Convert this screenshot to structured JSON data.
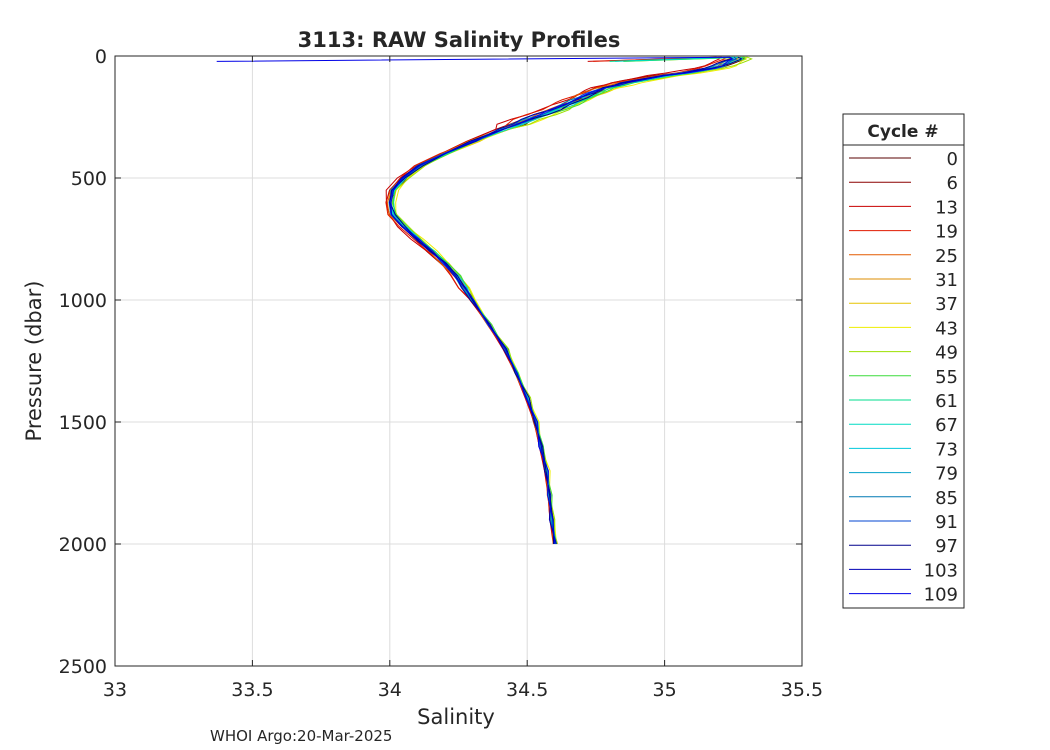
{
  "chart_data": {
    "type": "line",
    "title": "3113: RAW Salinity Profiles",
    "xlabel": "Salinity",
    "ylabel": "Pressure (dbar)",
    "xlim": [
      33,
      35.5
    ],
    "ylim": [
      0,
      2500
    ],
    "y_reversed": true,
    "x_ticks": [
      "33",
      "33.5",
      "34",
      "34.5",
      "35",
      "35.5"
    ],
    "y_ticks": [
      "0",
      "500",
      "1000",
      "1500",
      "2000",
      "2500"
    ],
    "grid": true,
    "legend_title": "Cycle #",
    "legend_position": "outside-right",
    "footer": "WHOI Argo:20-Mar-2025",
    "mean_profile": {
      "pressure": [
        5,
        12,
        20,
        30,
        40,
        50,
        60,
        70,
        80,
        90,
        100,
        110,
        120,
        130,
        140,
        150,
        160,
        170,
        180,
        190,
        200,
        220,
        240,
        260,
        280,
        300,
        350,
        400,
        450,
        500,
        550,
        600,
        650,
        700,
        750,
        800,
        850,
        900,
        950,
        1000,
        1100,
        1200,
        1300,
        1400,
        1500,
        1600,
        1700,
        1800,
        1900,
        2000
      ],
      "salinity": [
        35.25,
        35.26,
        35.24,
        35.22,
        35.2,
        35.17,
        35.12,
        35.07,
        35.0,
        34.95,
        34.9,
        34.85,
        34.82,
        34.78,
        34.76,
        34.74,
        34.72,
        34.7,
        34.68,
        34.66,
        34.64,
        34.6,
        34.55,
        34.5,
        34.46,
        34.41,
        34.3,
        34.2,
        34.11,
        34.05,
        34.01,
        34.0,
        34.01,
        34.05,
        34.1,
        34.15,
        34.2,
        34.24,
        34.27,
        34.3,
        34.36,
        34.42,
        34.46,
        34.5,
        34.53,
        34.55,
        34.57,
        34.58,
        34.59,
        34.6
      ]
    },
    "series": [
      {
        "name": "0",
        "color": "#5a0000",
        "offset": 0.02,
        "surface_spike": null
      },
      {
        "name": "6",
        "color": "#8c0000",
        "offset": -0.03,
        "surface_spike": null
      },
      {
        "name": "13",
        "color": "#c80000",
        "offset": -0.05,
        "surface_spike": 34.72
      },
      {
        "name": "19",
        "color": "#e01a00",
        "offset": -0.04,
        "surface_spike": 34.74
      },
      {
        "name": "25",
        "color": "#e35a00",
        "offset": -0.02,
        "surface_spike": null
      },
      {
        "name": "31",
        "color": "#dc8c00",
        "offset": 0.0,
        "surface_spike": null
      },
      {
        "name": "37",
        "color": "#e6c300",
        "offset": 0.03,
        "surface_spike": null
      },
      {
        "name": "43",
        "color": "#eeee00",
        "offset": 0.05,
        "surface_spike": null
      },
      {
        "name": "49",
        "color": "#9be000",
        "offset": 0.04,
        "surface_spike": 34.85
      },
      {
        "name": "55",
        "color": "#3cdc3c",
        "offset": 0.03,
        "surface_spike": 34.85
      },
      {
        "name": "61",
        "color": "#00dc8c",
        "offset": 0.02,
        "surface_spike": 34.8
      },
      {
        "name": "67",
        "color": "#00dcc3",
        "offset": 0.01,
        "surface_spike": 34.82
      },
      {
        "name": "73",
        "color": "#00c8dc",
        "offset": 0.015,
        "surface_spike": null
      },
      {
        "name": "79",
        "color": "#00a0c8",
        "offset": 0.0,
        "surface_spike": null
      },
      {
        "name": "85",
        "color": "#0078b4",
        "offset": -0.01,
        "surface_spike": null
      },
      {
        "name": "91",
        "color": "#0046d2",
        "offset": 0.0,
        "surface_spike": null
      },
      {
        "name": "97",
        "color": "#00008c",
        "offset": 0.01,
        "surface_spike": null
      },
      {
        "name": "103",
        "color": "#0000b4",
        "offset": -0.01,
        "surface_spike": null
      },
      {
        "name": "109",
        "color": "#0000e6",
        "offset": 0.0,
        "surface_spike": 33.37
      }
    ]
  }
}
